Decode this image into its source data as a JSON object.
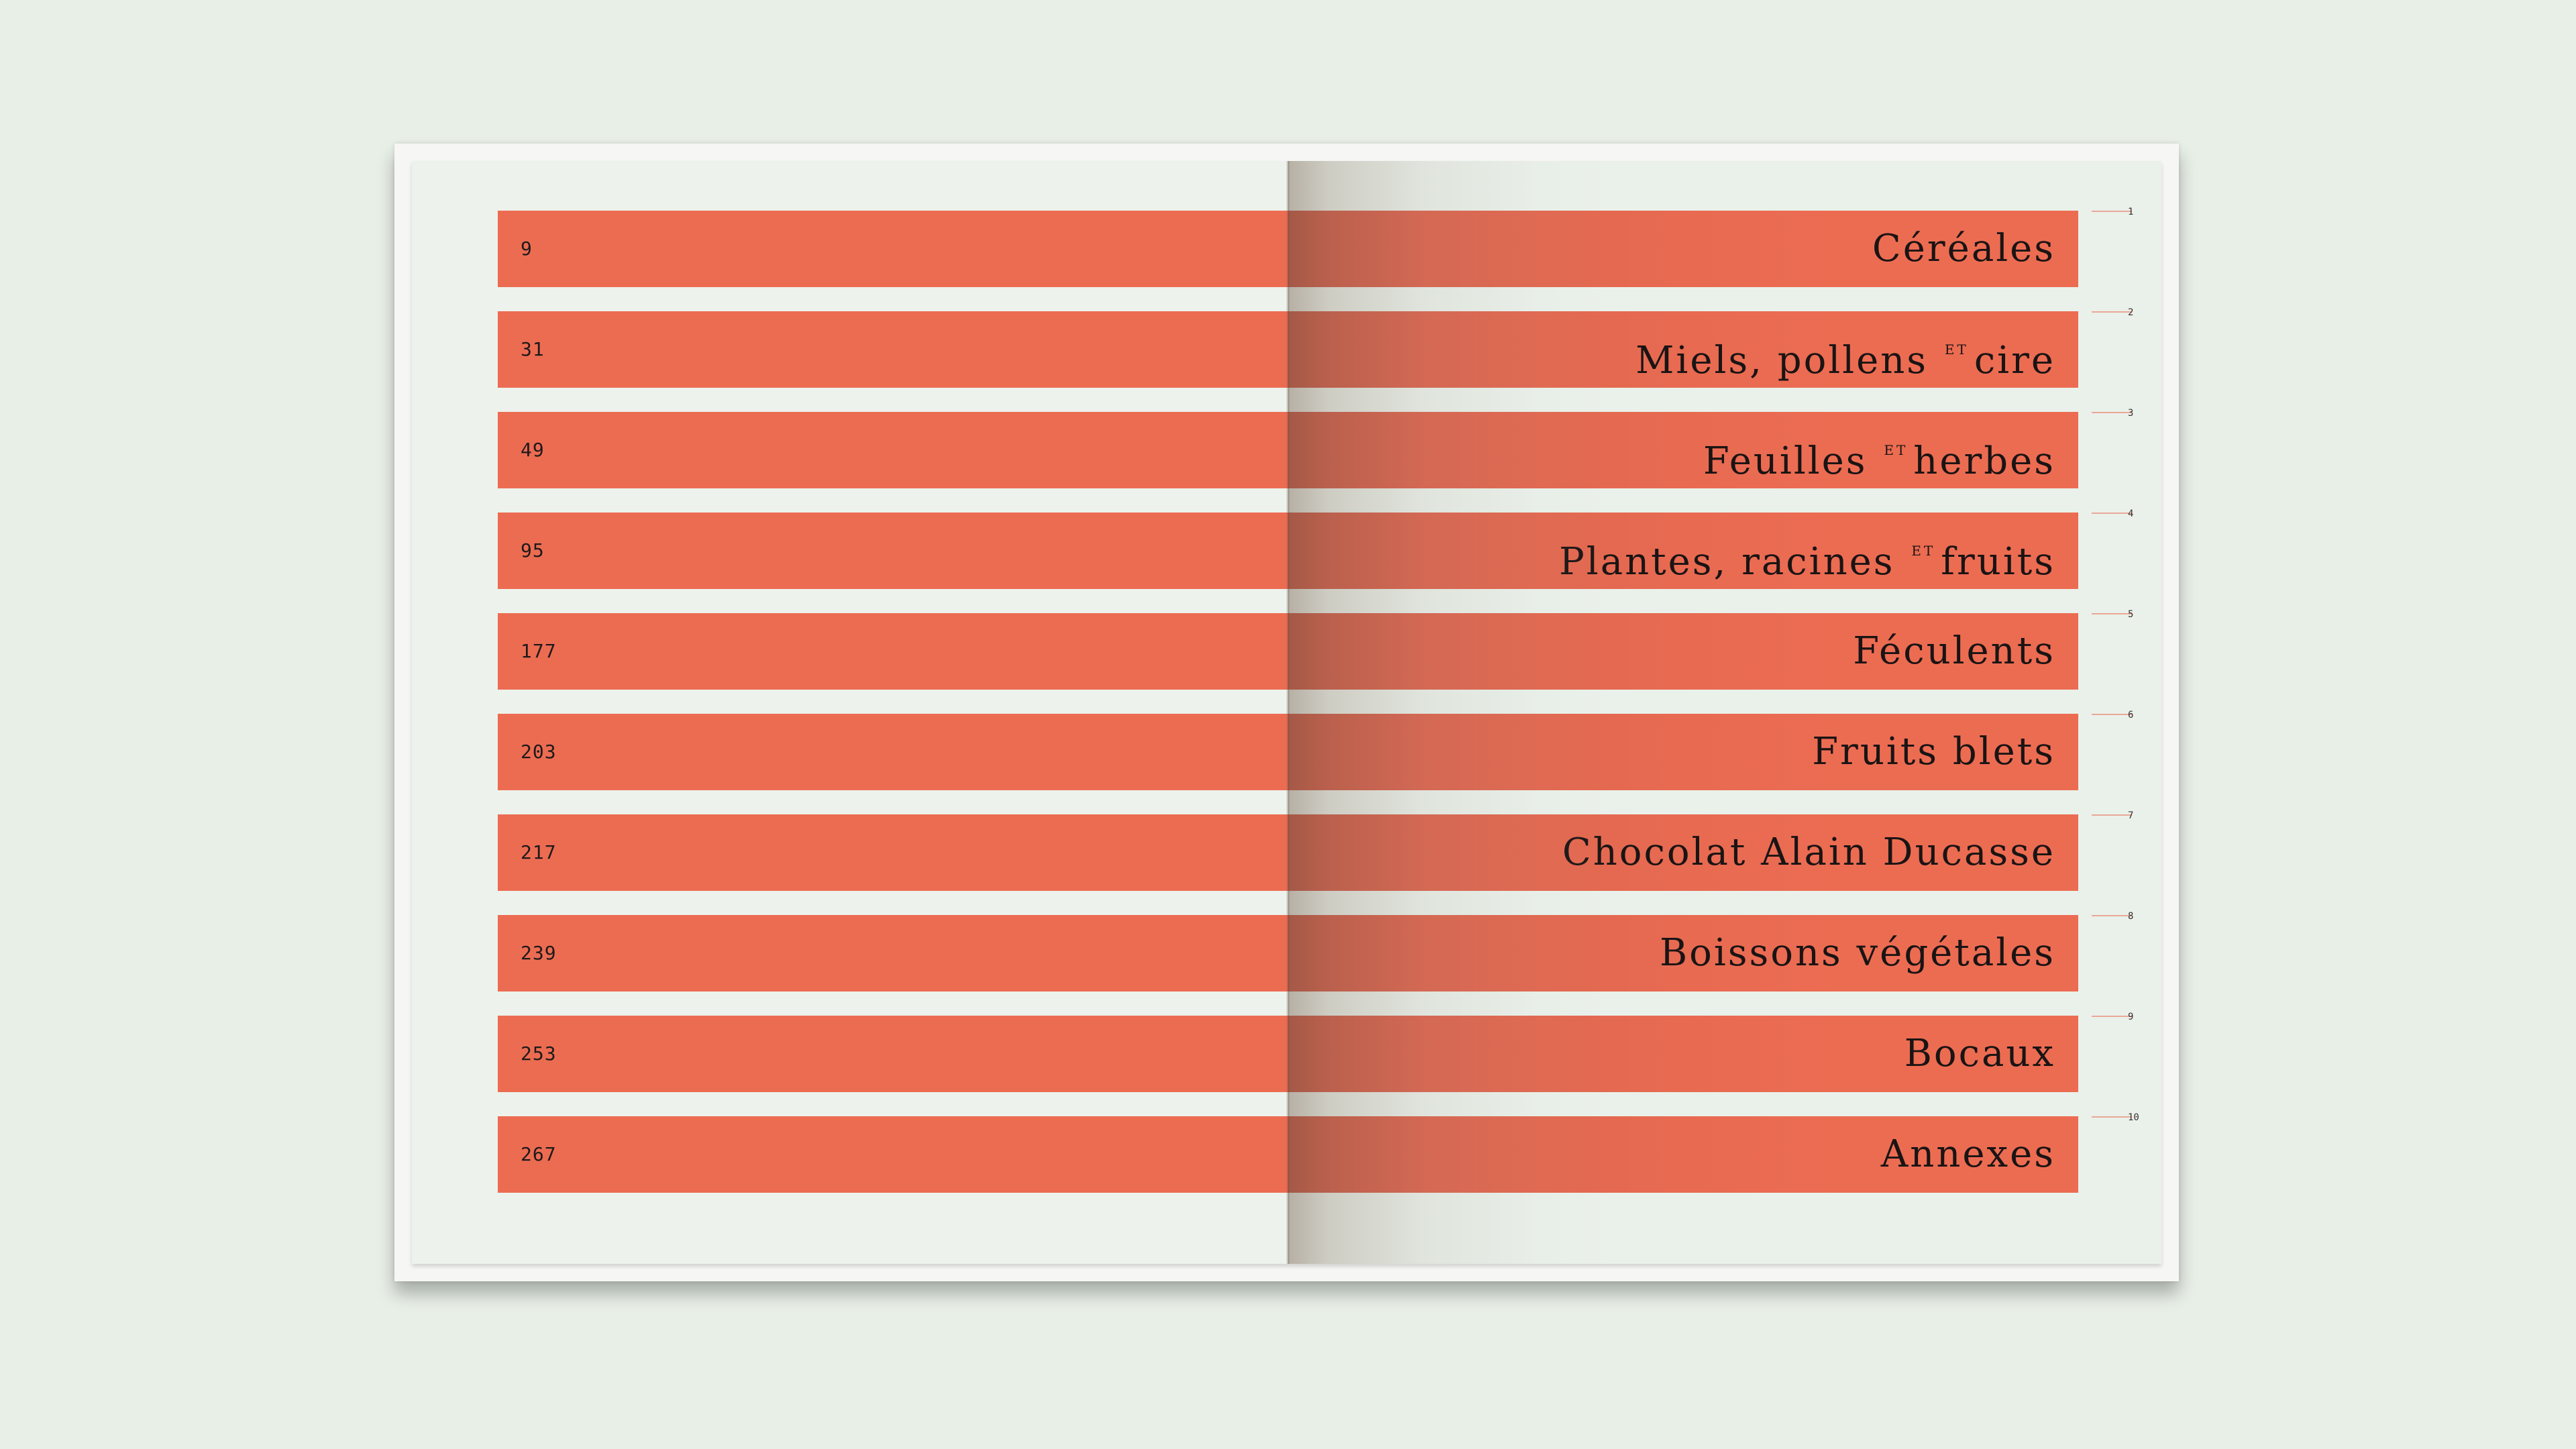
{
  "colors": {
    "background": "#e8efe7",
    "page": "#eaf1ea",
    "band": "#ec6c52",
    "text": "#1a1414"
  },
  "toc": [
    {
      "page": "9",
      "title": "Céréales",
      "title_after": "",
      "title_end": "",
      "marker": "1"
    },
    {
      "page": "31",
      "title": "Miels, pollens",
      "title_after": "ET",
      "title_end": "cire",
      "marker": "2"
    },
    {
      "page": "49",
      "title": "Feuilles",
      "title_after": "ET",
      "title_end": "herbes",
      "marker": "3"
    },
    {
      "page": "95",
      "title": "Plantes, racines",
      "title_after": "ET",
      "title_end": "fruits",
      "marker": "4"
    },
    {
      "page": "177",
      "title": "Féculents",
      "title_after": "",
      "title_end": "",
      "marker": "5"
    },
    {
      "page": "203",
      "title": "Fruits blets",
      "title_after": "",
      "title_end": "",
      "marker": "6"
    },
    {
      "page": "217",
      "title": "Chocolat Alain Ducasse",
      "title_after": "",
      "title_end": "",
      "marker": "7"
    },
    {
      "page": "239",
      "title": "Boissons végétales",
      "title_after": "",
      "title_end": "",
      "marker": "8"
    },
    {
      "page": "253",
      "title": "Bocaux",
      "title_after": "",
      "title_end": "",
      "marker": "9"
    },
    {
      "page": "267",
      "title": "Annexes",
      "title_after": "",
      "title_end": "",
      "marker": "10"
    }
  ]
}
